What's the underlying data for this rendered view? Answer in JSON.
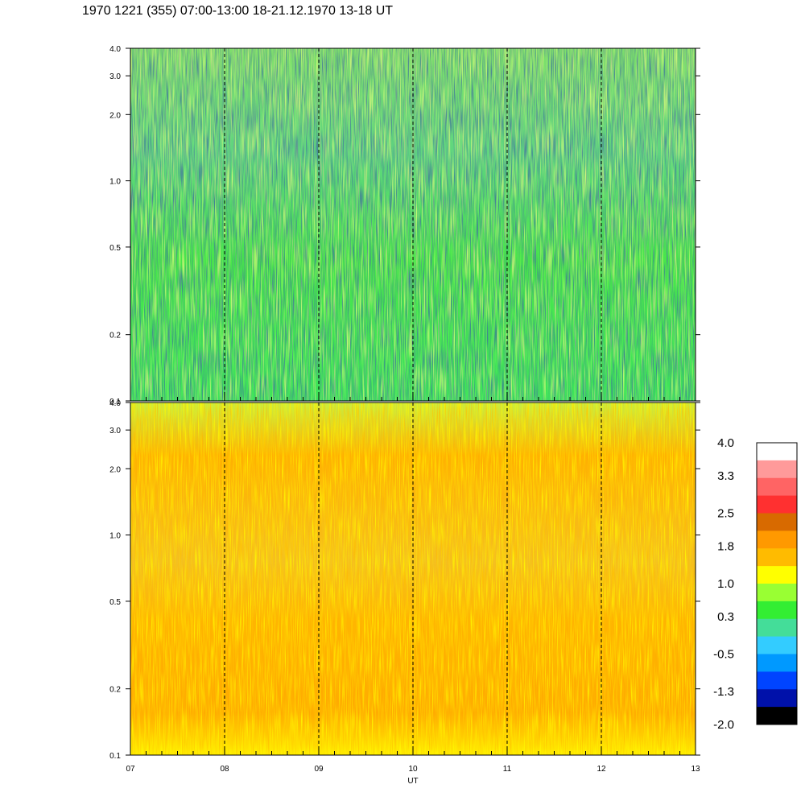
{
  "title": "1970 1221 (355) 07:00-13:00 18-21.12.1970  13-18 UT",
  "chart_data": [
    {
      "type": "heatmap",
      "panel": "top",
      "x_axis": {
        "range": [
          7,
          13
        ],
        "grid_lines_at": [
          8,
          9,
          10,
          11,
          12
        ],
        "grid_style": "dashed"
      },
      "y_axis": {
        "scale": "log",
        "range": [
          0.1,
          4.0
        ],
        "ticks": [
          0.1,
          0.2,
          0.5,
          1.0,
          2.0,
          3.0,
          4.0
        ],
        "tick_labels": [
          "0.1",
          "0.2",
          "0.5",
          "1.0",
          "2.0",
          "3.0",
          "4.0"
        ]
      },
      "dominant_level_range": [
        -0.5,
        1.0
      ],
      "description_levels": {
        "low_frequency_bias": 0.3,
        "high_frequency_bias": 0.3
      }
    },
    {
      "type": "heatmap",
      "panel": "bottom",
      "x_axis": {
        "range": [
          7,
          13
        ],
        "grid_lines_at": [
          8,
          9,
          10,
          11,
          12
        ],
        "grid_style": "dashed",
        "tick_labels": [
          "07",
          "08",
          "09",
          "10",
          "11",
          "12",
          "13"
        ],
        "label": "UT"
      },
      "y_axis": {
        "scale": "log",
        "range": [
          0.1,
          4.0
        ],
        "ticks": [
          0.1,
          0.2,
          0.5,
          1.0,
          2.0,
          3.0,
          4.0
        ],
        "tick_labels": [
          "0.1",
          "0.2",
          "0.5",
          "1.0",
          "2.0",
          "3.0",
          "4.0"
        ]
      },
      "dominant_level_range": [
        0.3,
        2.5
      ],
      "description_levels": {
        "low_frequency_bias": 1.8,
        "high_frequency_bias": 1.0
      }
    }
  ],
  "colorbar": {
    "labels": [
      "4.0",
      "3.3",
      "2.5",
      "1.8",
      "1.0",
      "0.3",
      "-0.5",
      "-1.3",
      "-2.0"
    ],
    "range": [
      -2.0,
      4.0
    ],
    "colors_top_to_bottom": [
      "#ffffff",
      "#ff9a9a",
      "#ff6464",
      "#ff3030",
      "#d86a00",
      "#ff9900",
      "#ffbb00",
      "#ffff00",
      "#99ff33",
      "#33ee33",
      "#44dd99",
      "#33ccff",
      "#0099ff",
      "#0044ff",
      "#0011aa",
      "#000000"
    ]
  }
}
